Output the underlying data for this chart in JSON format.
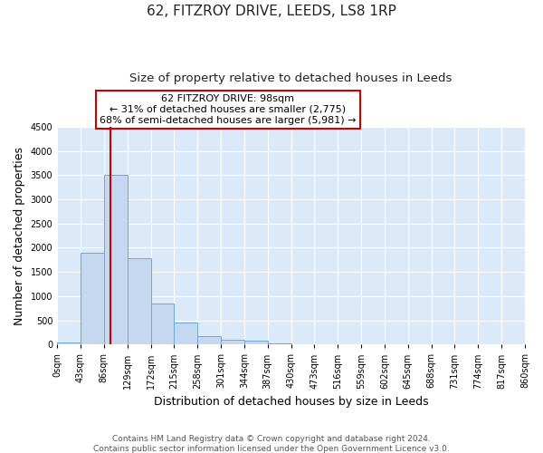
{
  "title": "62, FITZROY DRIVE, LEEDS, LS8 1RP",
  "subtitle": "Size of property relative to detached houses in Leeds",
  "xlabel": "Distribution of detached houses by size in Leeds",
  "ylabel": "Number of detached properties",
  "bin_edges": [
    0,
    43,
    86,
    129,
    172,
    215,
    258,
    301,
    344,
    387,
    430,
    473,
    516,
    559,
    602,
    645,
    688,
    731,
    774,
    817,
    860
  ],
  "bar_heights": [
    50,
    1900,
    3500,
    1775,
    850,
    450,
    175,
    100,
    75,
    25,
    0,
    0,
    0,
    0,
    0,
    0,
    0,
    0,
    0,
    0
  ],
  "bar_color": "#c5d8f0",
  "bar_edge_color": "#6aaad4",
  "property_size": 98,
  "vline_color": "#cc0000",
  "annotation_text": "62 FITZROY DRIVE: 98sqm\n← 31% of detached houses are smaller (2,775)\n68% of semi-detached houses are larger (5,981) →",
  "annotation_box_color": "#ffffff",
  "annotation_box_edge_color": "#cc0000",
  "ylim": [
    0,
    4500
  ],
  "yticks": [
    0,
    500,
    1000,
    1500,
    2000,
    2500,
    3000,
    3500,
    4000,
    4500
  ],
  "tick_labels": [
    "0sqm",
    "43sqm",
    "86sqm",
    "129sqm",
    "172sqm",
    "215sqm",
    "258sqm",
    "301sqm",
    "344sqm",
    "387sqm",
    "430sqm",
    "473sqm",
    "516sqm",
    "559sqm",
    "602sqm",
    "645sqm",
    "688sqm",
    "731sqm",
    "774sqm",
    "817sqm",
    "860sqm"
  ],
  "footer_line1": "Contains HM Land Registry data © Crown copyright and database right 2024.",
  "footer_line2": "Contains public sector information licensed under the Open Government Licence v3.0.",
  "bg_color": "#ffffff",
  "plot_bg_color": "#dce9f8",
  "grid_color": "#ffffff",
  "title_fontsize": 11,
  "subtitle_fontsize": 9.5,
  "axis_label_fontsize": 9,
  "tick_fontsize": 7,
  "footer_fontsize": 6.5
}
